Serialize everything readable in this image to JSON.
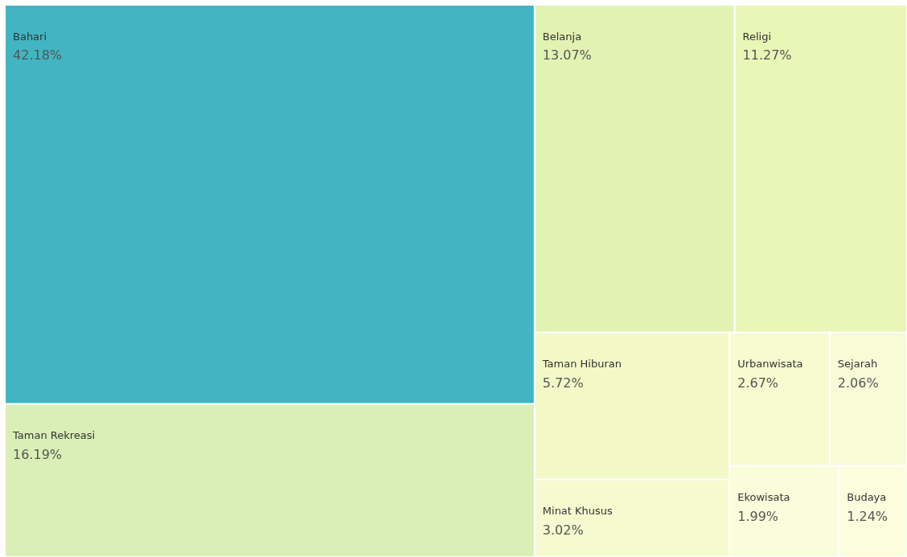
{
  "chart_data": {
    "type": "other",
    "categories": [
      "Bahari",
      "Taman Rekreasi",
      "Belanja",
      "Religi",
      "Taman Hiburan",
      "Minat Khusus",
      "Urbanwisata",
      "Sejarah",
      "Ekowisata",
      "Budaya"
    ],
    "values": [
      42.18,
      16.19,
      13.07,
      11.27,
      5.72,
      3.02,
      2.67,
      2.06,
      1.99,
      1.24
    ],
    "value_labels": [
      "42.18%",
      "16.19%",
      "13.07%",
      "11.27%",
      "5.72%",
      "3.02%",
      "2.67%",
      "2.06%",
      "1.99%",
      "1.24%"
    ],
    "colors": [
      "#41b5c1",
      "#d9efb6",
      "#e1f2b2",
      "#e9f6b6",
      "#f2f9c6",
      "#f5fbcf",
      "#f6fbd0",
      "#f8fcd6",
      "#f9fdd9",
      "#fbfddd"
    ]
  }
}
